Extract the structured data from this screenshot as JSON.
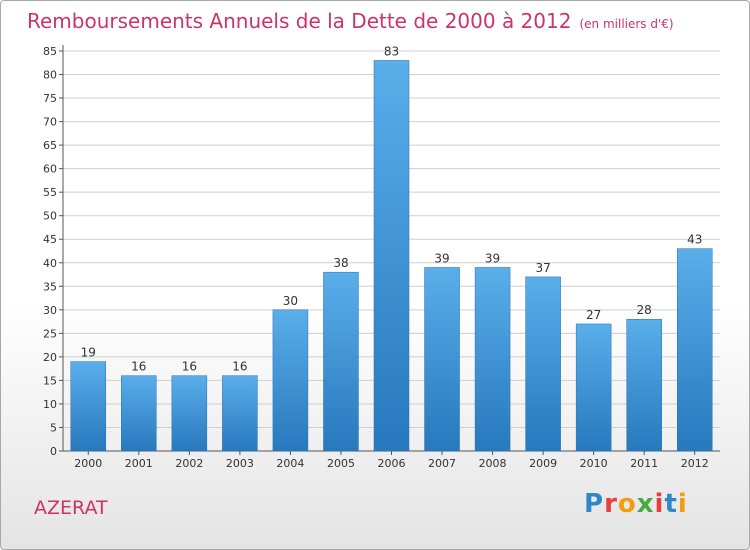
{
  "header": {
    "title": "Remboursements Annuels de la Dette de 2000 à 2012",
    "unit": "(en milliers d'€)"
  },
  "footer": {
    "town": "AZERAT",
    "logo_text": "Proxiti"
  },
  "colors": {
    "bar_top": "#5aaeea",
    "bar_bottom": "#2878bd",
    "title": "#cc3366",
    "grid": "#cfcfcf"
  },
  "chart_data": {
    "type": "bar",
    "title": "Remboursements Annuels de la Dette de 2000 à 2012",
    "xlabel": "",
    "ylabel": "",
    "categories": [
      "2000",
      "2001",
      "2002",
      "2003",
      "2004",
      "2005",
      "2006",
      "2007",
      "2008",
      "2009",
      "2010",
      "2011",
      "2012"
    ],
    "values": [
      19,
      16,
      16,
      16,
      30,
      38,
      83,
      39,
      39,
      37,
      27,
      28,
      43
    ],
    "ylim": [
      0,
      85
    ],
    "yticks": [
      0,
      5,
      10,
      15,
      20,
      25,
      30,
      35,
      40,
      45,
      50,
      55,
      60,
      65,
      70,
      75,
      80,
      85
    ],
    "grid": true,
    "data_labels": true
  }
}
